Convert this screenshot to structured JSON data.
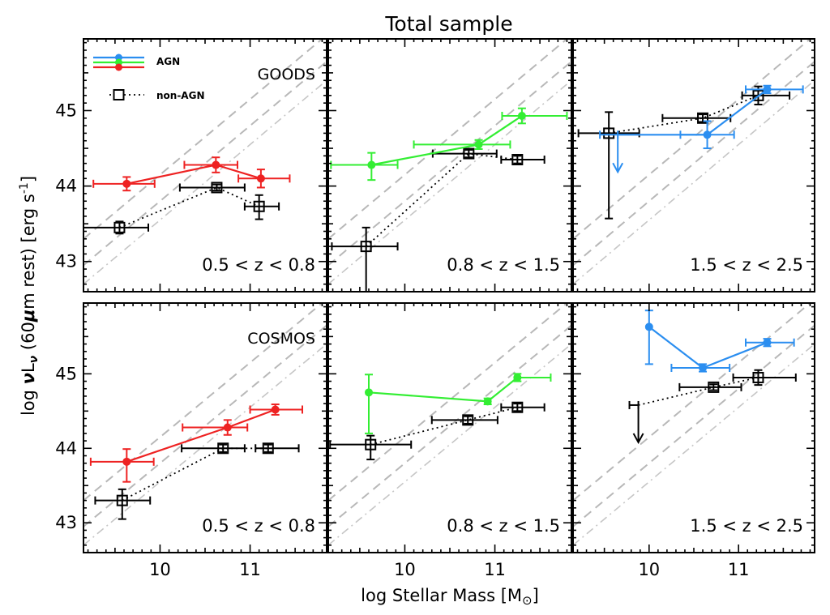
{
  "chart_data": {
    "type": "scatter",
    "title": "Total sample",
    "xlabel": "log Stellar Mass [M",
    "xlabel_symbol": "⊙",
    "xlabel_close": "]",
    "ylabel": {
      "prefix": "log ",
      "nu": "ν",
      "L": "L",
      "L_sub": "ν",
      "open": " (60",
      "mu": "μ",
      "rest": "m rest) [erg s",
      "exp": "-1",
      "close": "]"
    },
    "xlim": [
      9.15,
      11.85
    ],
    "ylim": [
      42.6,
      45.95
    ],
    "x_ticks": [
      10,
      11
    ],
    "y_ticks": [
      43,
      44,
      45
    ],
    "colors": {
      "agn_low": "#ee2222",
      "agn_mid": "#33ee33",
      "agn_high": "#2b8ef0",
      "non_agn": "#000000",
      "reference": "#b8b8b8"
    },
    "legend": {
      "position": "top-left",
      "agn_label": "AGN",
      "non_agn_label": "non-AGN"
    },
    "panels": [
      {
        "field": "GOODS",
        "range_label": "0.5 < z < 0.8",
        "agn_color": "agn_low",
        "agn": [
          {
            "x": 9.63,
            "y": 44.03,
            "xerr": [
              0.37,
              0.31
            ],
            "yerr": [
              0.09,
              0.09
            ]
          },
          {
            "x": 10.62,
            "y": 44.28,
            "xerr": [
              0.35,
              0.24
            ],
            "yerr": [
              0.1,
              0.1
            ]
          },
          {
            "x": 11.12,
            "y": 44.1,
            "xerr": [
              0.25,
              0.32
            ],
            "yerr": [
              0.12,
              0.12
            ]
          }
        ],
        "non_agn": [
          {
            "x": 9.55,
            "y": 43.45,
            "xerr": [
              0.4,
              0.32
            ],
            "yerr": [
              0.08,
              0.08
            ]
          },
          {
            "x": 10.63,
            "y": 43.98,
            "xerr": [
              0.41,
              0.31
            ],
            "yerr": [
              0.04,
              0.04
            ]
          },
          {
            "x": 11.1,
            "y": 43.73,
            "xerr": [
              0.16,
              0.22
            ],
            "yerr": [
              0.17,
              0.15
            ]
          }
        ]
      },
      {
        "field": "",
        "range_label": "0.8 < z < 1.5",
        "agn_color": "agn_mid",
        "agn": [
          {
            "x": 9.63,
            "y": 44.28,
            "xerr": [
              0.45,
              0.29
            ],
            "yerr": [
              0.2,
              0.16
            ]
          },
          {
            "x": 10.82,
            "y": 44.55,
            "xerr": [
              0.72,
              0.35
            ],
            "yerr": [
              0.06,
              0.06
            ]
          },
          {
            "x": 11.3,
            "y": 44.93,
            "xerr": [
              0.22,
              0.5
            ],
            "yerr": [
              0.1,
              0.1
            ]
          }
        ],
        "non_agn": [
          {
            "x": 9.57,
            "y": 43.2,
            "xerr": [
              0.38,
              0.35
            ],
            "yerr": [
              0.6,
              0.25
            ]
          },
          {
            "x": 10.71,
            "y": 44.43,
            "xerr": [
              0.4,
              0.31
            ],
            "yerr": [
              0.05,
              0.05
            ]
          },
          {
            "x": 11.25,
            "y": 44.35,
            "xerr": [
              0.18,
              0.3
            ],
            "yerr": [
              0.05,
              0.05
            ]
          }
        ]
      },
      {
        "field": "",
        "range_label": "1.5 < z < 2.5",
        "agn_color": "agn_high",
        "agn": [
          {
            "x": 9.65,
            "y": 44.68,
            "xerr": [
              0.2,
              0.0
            ],
            "yerr": [
              0.0,
              0.0
            ],
            "upper_limit": true
          },
          {
            "x": 10.65,
            "y": 44.68,
            "xerr": [
              0.3,
              0.3
            ],
            "yerr": [
              0.18,
              0.18
            ]
          },
          {
            "x": 11.32,
            "y": 45.28,
            "xerr": [
              0.24,
              0.4
            ],
            "yerr": [
              0.05,
              0.05
            ]
          }
        ],
        "non_agn": [
          {
            "x": 9.55,
            "y": 44.7,
            "xerr": [
              0.34,
              0.34
            ],
            "yerr": [
              1.13,
              0.28
            ]
          },
          {
            "x": 10.6,
            "y": 44.9,
            "xerr": [
              0.45,
              0.31
            ],
            "yerr": [
              0.05,
              0.05
            ]
          },
          {
            "x": 11.22,
            "y": 45.2,
            "xerr": [
              0.18,
              0.35
            ],
            "yerr": [
              0.12,
              0.12
            ]
          }
        ]
      },
      {
        "field": "COSMOS",
        "range_label": "0.5 < z < 0.8",
        "agn_color": "agn_low",
        "agn": [
          {
            "x": 9.63,
            "y": 43.82,
            "xerr": [
              0.4,
              0.3
            ],
            "yerr": [
              0.27,
              0.17
            ]
          },
          {
            "x": 10.75,
            "y": 44.28,
            "xerr": [
              0.5,
              0.22
            ],
            "yerr": [
              0.1,
              0.1
            ]
          },
          {
            "x": 11.28,
            "y": 44.52,
            "xerr": [
              0.28,
              0.3
            ],
            "yerr": [
              0.07,
              0.07
            ]
          }
        ],
        "non_agn": [
          {
            "x": 9.58,
            "y": 43.3,
            "xerr": [
              0.3,
              0.31
            ],
            "yerr": [
              0.25,
              0.15
            ]
          },
          {
            "x": 10.7,
            "y": 44.0,
            "xerr": [
              0.46,
              0.24
            ],
            "yerr": [
              0.05,
              0.05
            ]
          },
          {
            "x": 11.2,
            "y": 44.0,
            "xerr": [
              0.14,
              0.34
            ],
            "yerr": [
              0.05,
              0.05
            ]
          }
        ]
      },
      {
        "field": "",
        "range_label": "0.8 < z < 1.5",
        "agn_color": "agn_mid",
        "agn": [
          {
            "x": 9.6,
            "y": 44.75,
            "xerr": [
              0.0,
              0.0
            ],
            "yerr": [
              0.55,
              0.24
            ]
          },
          {
            "x": 10.92,
            "y": 44.63,
            "xerr": [
              0.0,
              0.0
            ],
            "yerr": [
              0.04,
              0.04
            ]
          },
          {
            "x": 11.25,
            "y": 44.95,
            "xerr": [
              0.0,
              0.37
            ],
            "yerr": [
              0.05,
              0.05
            ]
          }
        ],
        "non_agn": [
          {
            "x": 9.62,
            "y": 44.05,
            "xerr": [
              0.45,
              0.45
            ],
            "yerr": [
              0.2,
              0.12
            ]
          },
          {
            "x": 10.7,
            "y": 44.38,
            "xerr": [
              0.4,
              0.33
            ],
            "yerr": [
              0.05,
              0.05
            ]
          },
          {
            "x": 11.25,
            "y": 44.55,
            "xerr": [
              0.18,
              0.3
            ],
            "yerr": [
              0.05,
              0.05
            ]
          }
        ]
      },
      {
        "field": "",
        "range_label": "1.5 < z < 2.5",
        "agn_color": "agn_high",
        "agn": [
          {
            "x": 10.0,
            "y": 45.63,
            "xerr": [
              0.0,
              0.0
            ],
            "yerr": [
              0.5,
              0.22
            ]
          },
          {
            "x": 10.6,
            "y": 45.08,
            "xerr": [
              0.35,
              0.3
            ],
            "yerr": [
              0.05,
              0.05
            ]
          },
          {
            "x": 11.32,
            "y": 45.42,
            "xerr": [
              0.24,
              0.3
            ],
            "yerr": [
              0.05,
              0.05
            ]
          }
        ],
        "non_agn": [
          {
            "x": 9.88,
            "y": 44.58,
            "xerr": [
              0.1,
              0.0
            ],
            "yerr": [
              0.0,
              0.0
            ],
            "upper_limit": true
          },
          {
            "x": 10.72,
            "y": 44.82,
            "xerr": [
              0.38,
              0.31
            ],
            "yerr": [
              0.04,
              0.04
            ]
          },
          {
            "x": 11.22,
            "y": 44.95,
            "xerr": [
              0.28,
              0.42
            ],
            "yerr": [
              0.1,
              0.1
            ]
          }
        ]
      }
    ]
  }
}
